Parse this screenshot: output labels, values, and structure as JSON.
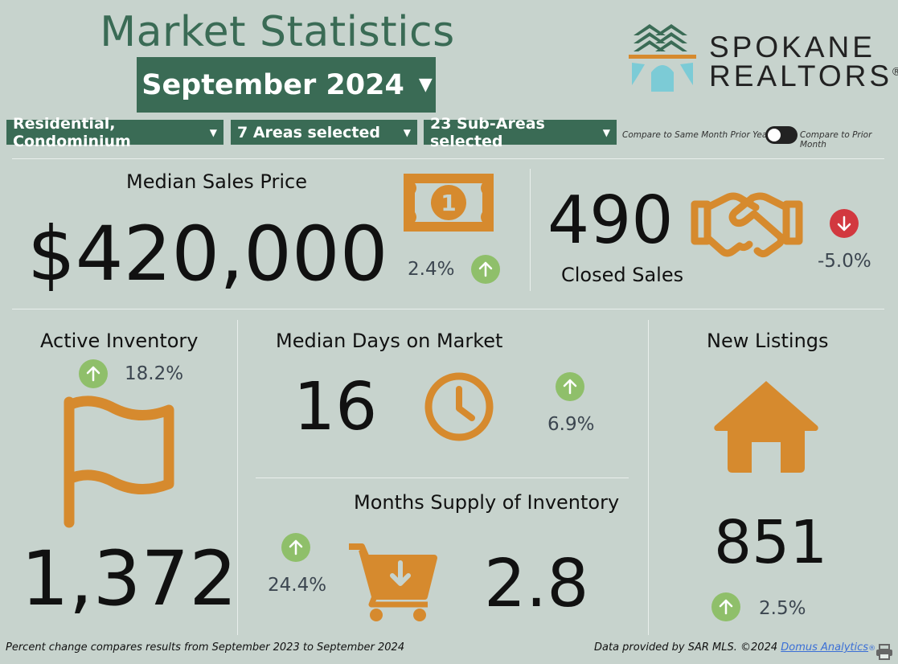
{
  "header": {
    "title": "Market Statistics",
    "month": "September 2024",
    "logo_line1": "SPOKANE",
    "logo_line2": "REALTORS",
    "logo_mark": "®"
  },
  "filters": {
    "property_type": "Residential, Condominium",
    "areas": "7 Areas selected",
    "sub_areas": "23 Sub-Areas selected",
    "compare_left": "Compare to Same Month Prior Year",
    "compare_right": "Compare to Prior Month"
  },
  "median_price": {
    "label": "Median Sales Price",
    "value": "$420,000",
    "change": "2.4%",
    "direction": "up",
    "icon": "money-bill-icon"
  },
  "closed_sales": {
    "label": "Closed Sales",
    "value": "490",
    "change": "-5.0%",
    "direction": "down",
    "icon": "handshake-icon"
  },
  "active_inventory": {
    "label": "Active Inventory",
    "value": "1,372",
    "change": "18.2%",
    "direction": "up",
    "icon": "flag-icon"
  },
  "days_on_market": {
    "label": "Median Days on Market",
    "value": "16",
    "change": "6.9%",
    "direction": "up",
    "icon": "clock-icon"
  },
  "months_supply": {
    "label": "Months Supply of Inventory",
    "value": "2.8",
    "change": "24.4%",
    "direction": "up",
    "icon": "cart-icon"
  },
  "new_listings": {
    "label": "New Listings",
    "value": "851",
    "change": "2.5%",
    "direction": "up",
    "icon": "house-icon"
  },
  "footer": {
    "note": "Percent change compares results from September 2023 to September 2024",
    "credit": "Data provided by SAR MLS. ©2024",
    "link": "Domus Analytics",
    "link_mark": "®"
  },
  "colors": {
    "accent_green": "#3a6b55",
    "icon_orange": "#d68a2e",
    "up": "#8fbf6a",
    "down": "#d2383f",
    "background": "#c7d3cd"
  }
}
